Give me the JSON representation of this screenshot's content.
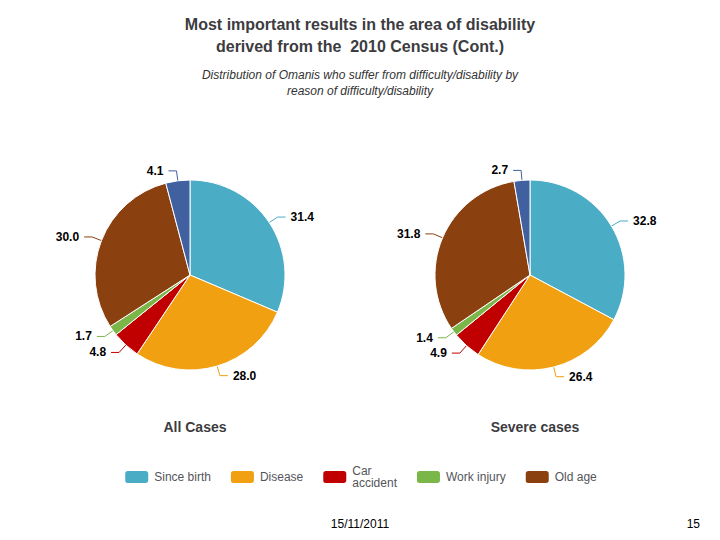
{
  "title": "Most important results in the area of disability\nderived from the  2010 Census (Cont.)",
  "subtitle": "Distribution of Omanis who suffer from difficulty/disability by\nreason of difficulty/disability",
  "annotations": [
    "15/11/2011",
    "15"
  ],
  "chart_data": [
    {
      "type": "pie",
      "title": "All Cases",
      "categories": [
        "Since birth",
        "Disease",
        "Car\naccident",
        "Work injury",
        "Old age",
        null
      ],
      "values": [
        31.4,
        28.0,
        4.8,
        1.7,
        30.0,
        4.1
      ],
      "value_labels": [
        "31.4",
        "28.0",
        "4.8",
        "1.7",
        "30.0",
        "4.1"
      ],
      "colors": [
        "#4BACC6",
        "#F0A010",
        "#C00000",
        "#7AB648",
        "#8B4010",
        "#4060A0"
      ],
      "data_labels": true,
      "legend": "bottom"
    },
    {
      "type": "pie",
      "title": "Severe cases",
      "categories": [
        "Since birth",
        "Disease",
        "Car\naccident",
        "Work injury",
        "Old age",
        null
      ],
      "values": [
        32.8,
        26.4,
        4.9,
        1.4,
        31.8,
        2.7
      ],
      "value_labels": [
        "32.8",
        "26.4",
        "4.9",
        "1.4",
        "31.8",
        "2.7"
      ],
      "colors": [
        "#4BACC6",
        "#F0A010",
        "#C00000",
        "#7AB648",
        "#8B4010",
        "#4060A0"
      ],
      "data_labels": true,
      "legend": "bottom"
    }
  ]
}
